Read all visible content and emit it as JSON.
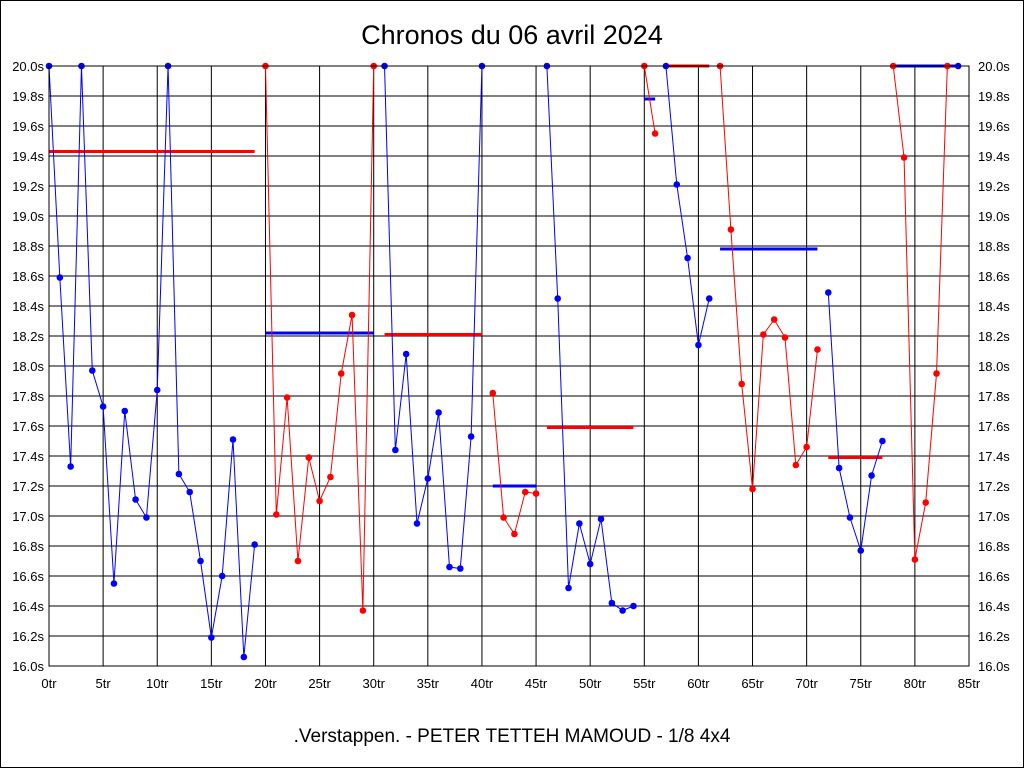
{
  "chart_data": {
    "type": "line",
    "title": "Chronos du 06 avril 2024",
    "xlabel": ".Verstappen. - PETER TETTEH MAMOUD - 1/8 4x4",
    "ylabel": "",
    "xlim": [
      0,
      85
    ],
    "ylim": [
      16.0,
      20.0
    ],
    "x_ticks": [
      0,
      5,
      10,
      15,
      20,
      25,
      30,
      35,
      40,
      45,
      50,
      55,
      60,
      65,
      70,
      75,
      80,
      85
    ],
    "x_tick_labels": [
      "0tr",
      "5tr",
      "10tr",
      "15tr",
      "20tr",
      "25tr",
      "30tr",
      "35tr",
      "40tr",
      "45tr",
      "50tr",
      "55tr",
      "60tr",
      "65tr",
      "70tr",
      "75tr",
      "80tr",
      "85tr"
    ],
    "y_ticks": [
      16.0,
      16.2,
      16.4,
      16.6,
      16.8,
      17.0,
      17.2,
      17.4,
      17.6,
      17.8,
      18.0,
      18.2,
      18.4,
      18.6,
      18.8,
      19.0,
      19.2,
      19.4,
      19.6,
      19.8,
      20.0
    ],
    "y_tick_labels": [
      "16.0s",
      "16.2s",
      "16.4s",
      "16.6s",
      "16.8s",
      "17.0s",
      "17.2s",
      "17.4s",
      "17.6s",
      "17.8s",
      "18.0s",
      "18.2s",
      "18.4s",
      "18.6s",
      "18.8s",
      "19.0s",
      "19.2s",
      "19.4s",
      "19.6s",
      "19.8s",
      "20.0s"
    ],
    "grid": true,
    "legend": "none",
    "colors": {
      "blue": "#0000ff",
      "red": "#ff0000"
    },
    "series": [
      {
        "color": "#0000ff",
        "x": [
          0,
          1,
          2,
          3,
          4,
          5,
          6,
          7,
          8,
          9,
          10,
          11,
          12,
          13,
          14,
          15,
          16,
          17,
          18,
          19
        ],
        "y": [
          20.0,
          18.59,
          17.33,
          20.0,
          17.97,
          17.73,
          16.55,
          17.7,
          17.11,
          16.99,
          17.84,
          20.0,
          17.28,
          17.16,
          16.7,
          16.19,
          16.6,
          17.51,
          16.06,
          16.81
        ]
      },
      {
        "color": "#ff0000",
        "x": [
          20,
          21,
          22,
          23,
          24,
          25,
          26,
          27,
          28,
          29,
          30
        ],
        "y": [
          20.0,
          17.01,
          17.79,
          16.7,
          17.39,
          17.1,
          17.26,
          17.95,
          18.34,
          16.37,
          20.0
        ]
      },
      {
        "color": "#0000ff",
        "x": [
          31,
          32,
          33,
          34,
          35,
          36,
          37,
          38,
          39,
          40
        ],
        "y": [
          20.0,
          17.44,
          18.08,
          16.95,
          17.25,
          17.69,
          16.66,
          16.65,
          17.53,
          20.0
        ]
      },
      {
        "color": "#ff0000",
        "x": [
          41,
          42,
          43,
          44,
          45
        ],
        "y": [
          17.82,
          16.99,
          16.88,
          17.16,
          17.15
        ]
      },
      {
        "color": "#0000ff",
        "x": [
          46,
          47,
          48,
          49,
          50,
          51,
          52,
          53,
          54
        ],
        "y": [
          20.0,
          18.45,
          16.52,
          16.95,
          16.68,
          16.98,
          16.42,
          16.37,
          16.4
        ]
      },
      {
        "color": "#ff0000",
        "x": [
          55,
          56
        ],
        "y": [
          20.0,
          19.55
        ]
      },
      {
        "color": "#0000ff",
        "x": [
          57,
          58,
          59,
          60,
          61
        ],
        "y": [
          20.0,
          19.21,
          18.72,
          18.14,
          18.45
        ]
      },
      {
        "color": "#ff0000",
        "x": [
          62,
          63,
          64,
          65,
          66,
          67,
          68,
          69,
          70,
          71
        ],
        "y": [
          20.0,
          18.91,
          17.88,
          17.18,
          18.21,
          18.31,
          18.19,
          17.34,
          17.46,
          18.11
        ]
      },
      {
        "color": "#0000ff",
        "x": [
          72,
          73,
          74,
          75,
          76,
          77
        ],
        "y": [
          18.49,
          17.32,
          16.99,
          16.77,
          17.27,
          17.5
        ]
      },
      {
        "color": "#ff0000",
        "x": [
          78,
          79,
          80,
          81,
          82,
          83
        ],
        "y": [
          20.0,
          19.39,
          16.71,
          17.09,
          17.95,
          20.0
        ]
      },
      {
        "color": "#0000ff",
        "x": [
          84
        ],
        "y": [
          20.0
        ]
      }
    ],
    "averages": [
      {
        "color": "#ff0000",
        "x_start": 0,
        "x_end": 19,
        "y": 19.43
      },
      {
        "color": "#0000ff",
        "x_start": 20,
        "x_end": 30,
        "y": 18.22
      },
      {
        "color": "#ff0000",
        "x_start": 31,
        "x_end": 40,
        "y": 18.21
      },
      {
        "color": "#0000ff",
        "x_start": 41,
        "x_end": 45,
        "y": 17.2
      },
      {
        "color": "#ff0000",
        "x_start": 46,
        "x_end": 54,
        "y": 17.59
      },
      {
        "color": "#0000ff",
        "x_start": 55,
        "x_end": 56,
        "y": 19.78
      },
      {
        "color": "#ff0000",
        "x_start": 57,
        "x_end": 61,
        "y": 20.0
      },
      {
        "color": "#0000ff",
        "x_start": 62,
        "x_end": 71,
        "y": 18.78
      },
      {
        "color": "#ff0000",
        "x_start": 72,
        "x_end": 77,
        "y": 17.39
      },
      {
        "color": "#0000ff",
        "x_start": 78,
        "x_end": 84,
        "y": 20.0
      }
    ]
  }
}
